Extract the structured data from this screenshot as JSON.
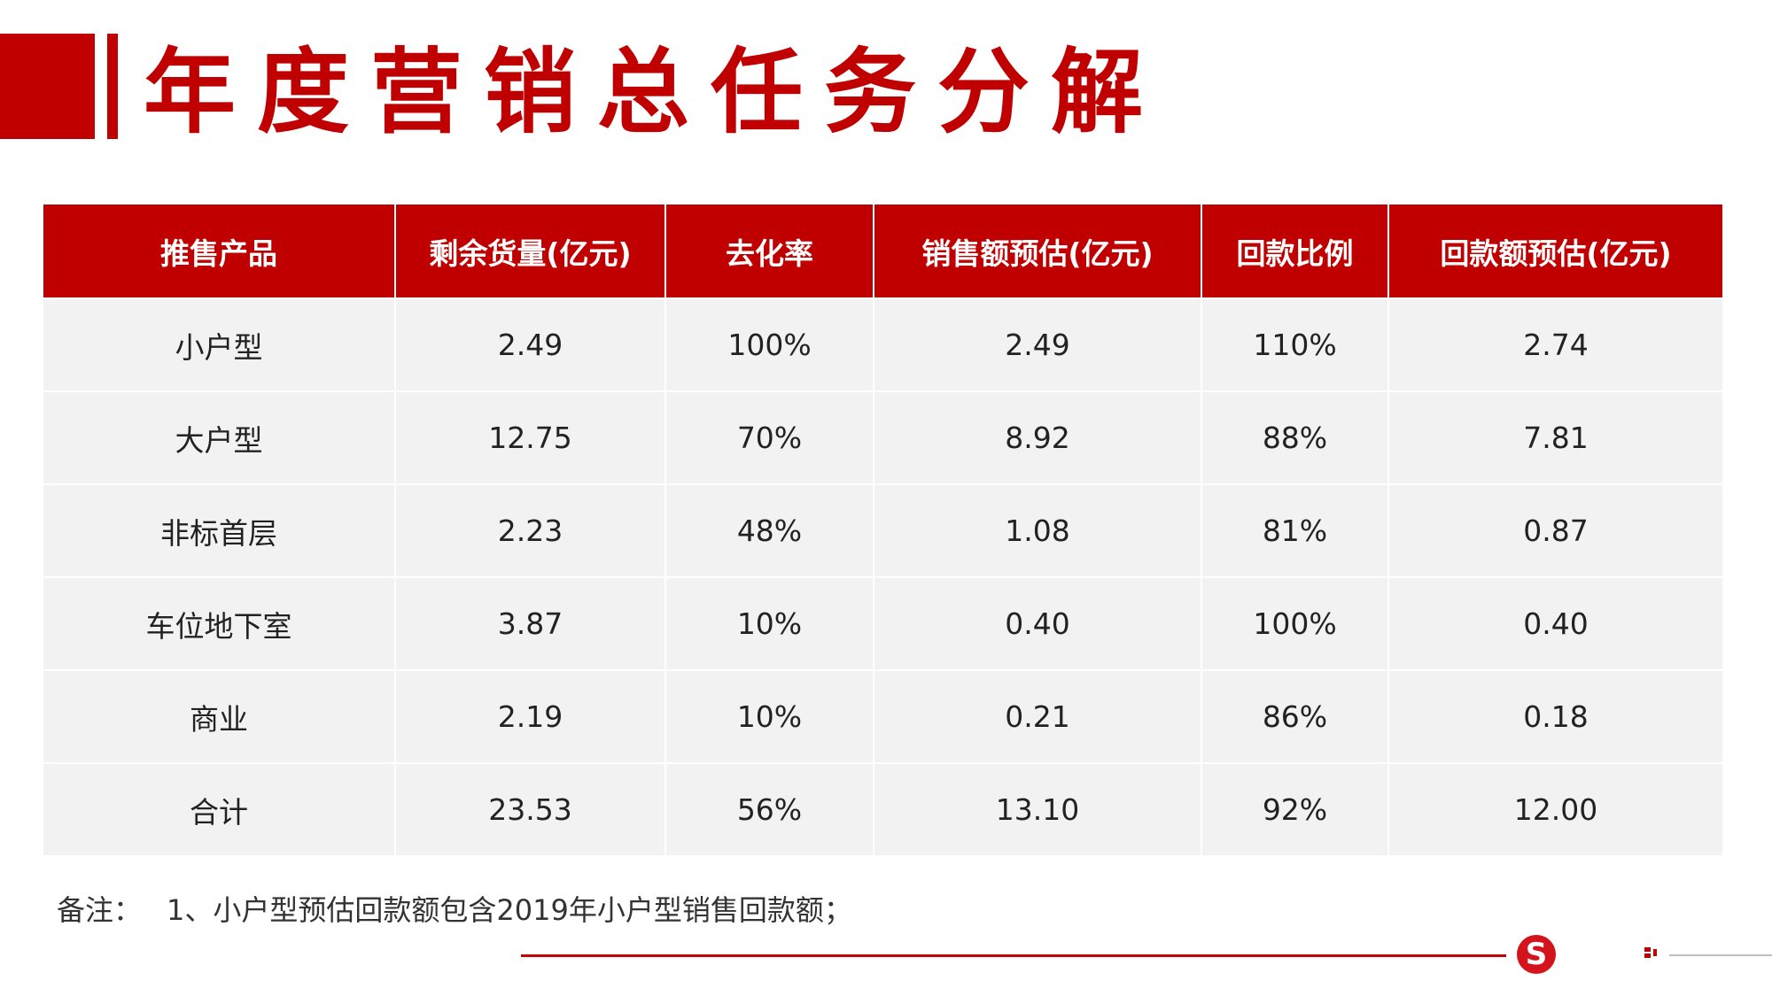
{
  "title": "年度营销总任务分解",
  "table": {
    "headers": [
      "推售产品",
      "剩余货量(亿元)",
      "去化率",
      "销售额预估(亿元)",
      "回款比例",
      "回款额预估(亿元)"
    ],
    "rows": [
      [
        "小户型",
        "2.49",
        "100%",
        "2.49",
        "110%",
        "2.74"
      ],
      [
        "大户型",
        "12.75",
        "70%",
        "8.92",
        "88%",
        "7.81"
      ],
      [
        "非标首层",
        "2.23",
        "48%",
        "1.08",
        "81%",
        "0.87"
      ],
      [
        "车位地下室",
        "3.87",
        "10%",
        "0.40",
        "100%",
        "0.40"
      ],
      [
        "商业",
        "2.19",
        "10%",
        "0.21",
        "86%",
        "0.18"
      ],
      [
        "合计",
        "23.53",
        "56%",
        "13.10",
        "92%",
        "12.00"
      ]
    ]
  },
  "note": {
    "label": "备注：",
    "text": "1、小户型预估回款额包含2019年小户型销售回款额；"
  },
  "footer": {
    "logo_letter": "S",
    "logo_icon": "company-logo-icon",
    "accent_color": "#c00000"
  }
}
